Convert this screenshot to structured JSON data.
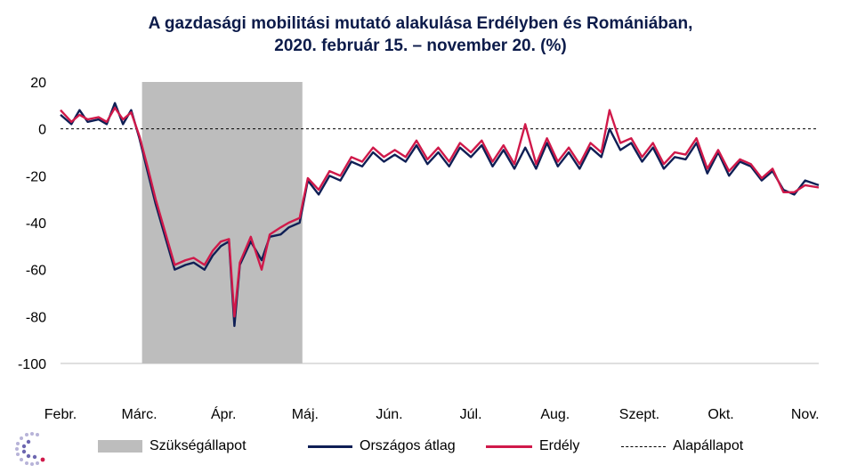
{
  "title": {
    "line1": "A gazdasági mobilitási mutató alakulása Erdélyben és Romániában,",
    "line2": "2020. február 15. – november 20. (%)"
  },
  "colors": {
    "orszagos": "#0f1f55",
    "erdely": "#d0194a",
    "shade": "#bdbdbd",
    "baseline": "#000000"
  },
  "legend": {
    "shade_label": "Szükségállapot",
    "orszagos_label": "Országos átlag",
    "erdely_label": "Erdély",
    "baseline_label": "Alapállapot"
  },
  "chart_data": {
    "type": "line",
    "title": "A gazdasági mobilitási mutató alakulása Erdélyben és Romániában, 2020. február 15. – november 20. (%)",
    "x_range": [
      "2020-02-15",
      "2020-11-20"
    ],
    "ylim": [
      -100,
      20
    ],
    "yticks": [
      20,
      0,
      -20,
      -40,
      -60,
      -80,
      -100
    ],
    "xticks": [
      {
        "label": "Febr.",
        "date": "2020-02-15"
      },
      {
        "label": "Márc.",
        "date": "2020-03-15"
      },
      {
        "label": "Ápr.",
        "date": "2020-04-15"
      },
      {
        "label": "Máj.",
        "date": "2020-05-15"
      },
      {
        "label": "Jún.",
        "date": "2020-06-15"
      },
      {
        "label": "Júl.",
        "date": "2020-07-15"
      },
      {
        "label": "Aug.",
        "date": "2020-08-15"
      },
      {
        "label": "Szept.",
        "date": "2020-09-15"
      },
      {
        "label": "Okt.",
        "date": "2020-10-15"
      },
      {
        "label": "Nov.",
        "date": "2020-11-15"
      }
    ],
    "shaded_period": {
      "name": "Szükségállapot",
      "start": "2020-03-16",
      "end": "2020-05-14"
    },
    "baseline": {
      "name": "Alapállapot",
      "value": 0
    },
    "grid": false,
    "legend_position": "bottom",
    "series": [
      {
        "name": "Országos átlag",
        "x": [
          "2020-02-15",
          "2020-02-19",
          "2020-02-22",
          "2020-02-25",
          "2020-02-29",
          "2020-03-03",
          "2020-03-06",
          "2020-03-09",
          "2020-03-12",
          "2020-03-15",
          "2020-03-18",
          "2020-03-21",
          "2020-03-25",
          "2020-03-28",
          "2020-04-01",
          "2020-04-04",
          "2020-04-08",
          "2020-04-11",
          "2020-04-14",
          "2020-04-17",
          "2020-04-19",
          "2020-04-21",
          "2020-04-25",
          "2020-04-29",
          "2020-05-02",
          "2020-05-06",
          "2020-05-09",
          "2020-05-13",
          "2020-05-16",
          "2020-05-20",
          "2020-05-24",
          "2020-05-28",
          "2020-06-01",
          "2020-06-05",
          "2020-06-09",
          "2020-06-13",
          "2020-06-17",
          "2020-06-21",
          "2020-06-25",
          "2020-06-29",
          "2020-07-03",
          "2020-07-07",
          "2020-07-11",
          "2020-07-15",
          "2020-07-19",
          "2020-07-23",
          "2020-07-27",
          "2020-07-31",
          "2020-08-04",
          "2020-08-08",
          "2020-08-12",
          "2020-08-16",
          "2020-08-20",
          "2020-08-24",
          "2020-08-28",
          "2020-09-01",
          "2020-09-04",
          "2020-09-08",
          "2020-09-12",
          "2020-09-16",
          "2020-09-20",
          "2020-09-24",
          "2020-09-28",
          "2020-10-02",
          "2020-10-06",
          "2020-10-10",
          "2020-10-14",
          "2020-10-18",
          "2020-10-22",
          "2020-10-26",
          "2020-10-30",
          "2020-11-03",
          "2020-11-07",
          "2020-11-11",
          "2020-11-15",
          "2020-11-20"
        ],
        "values": [
          6,
          2,
          8,
          3,
          4,
          2,
          11,
          2,
          8,
          -4,
          -18,
          -32,
          -48,
          -60,
          -58,
          -57,
          -60,
          -54,
          -50,
          -48,
          -84,
          -58,
          -48,
          -56,
          -46,
          -45,
          -42,
          -40,
          -22,
          -28,
          -20,
          -22,
          -14,
          -16,
          -10,
          -14,
          -11,
          -14,
          -7,
          -15,
          -10,
          -16,
          -8,
          -12,
          -7,
          -16,
          -9,
          -17,
          -8,
          -17,
          -6,
          -16,
          -10,
          -17,
          -8,
          -12,
          0,
          -9,
          -6,
          -14,
          -8,
          -17,
          -12,
          -13,
          -6,
          -19,
          -10,
          -20,
          -14,
          -16,
          -22,
          -18,
          -26,
          -28,
          -22,
          -24
        ]
      },
      {
        "name": "Erdély",
        "x": [
          "2020-02-15",
          "2020-02-19",
          "2020-02-22",
          "2020-02-25",
          "2020-02-29",
          "2020-03-03",
          "2020-03-06",
          "2020-03-09",
          "2020-03-12",
          "2020-03-15",
          "2020-03-18",
          "2020-03-21",
          "2020-03-25",
          "2020-03-28",
          "2020-04-01",
          "2020-04-04",
          "2020-04-08",
          "2020-04-11",
          "2020-04-14",
          "2020-04-17",
          "2020-04-19",
          "2020-04-21",
          "2020-04-25",
          "2020-04-29",
          "2020-05-02",
          "2020-05-06",
          "2020-05-09",
          "2020-05-13",
          "2020-05-16",
          "2020-05-20",
          "2020-05-24",
          "2020-05-28",
          "2020-06-01",
          "2020-06-05",
          "2020-06-09",
          "2020-06-13",
          "2020-06-17",
          "2020-06-21",
          "2020-06-25",
          "2020-06-29",
          "2020-07-03",
          "2020-07-07",
          "2020-07-11",
          "2020-07-15",
          "2020-07-19",
          "2020-07-23",
          "2020-07-27",
          "2020-07-31",
          "2020-08-04",
          "2020-08-08",
          "2020-08-12",
          "2020-08-16",
          "2020-08-20",
          "2020-08-24",
          "2020-08-28",
          "2020-09-01",
          "2020-09-04",
          "2020-09-08",
          "2020-09-12",
          "2020-09-16",
          "2020-09-20",
          "2020-09-24",
          "2020-09-28",
          "2020-10-02",
          "2020-10-06",
          "2020-10-10",
          "2020-10-14",
          "2020-10-18",
          "2020-10-22",
          "2020-10-26",
          "2020-10-30",
          "2020-11-03",
          "2020-11-07",
          "2020-11-11",
          "2020-11-15",
          "2020-11-20"
        ],
        "values": [
          8,
          3,
          6,
          4,
          5,
          3,
          9,
          4,
          7,
          -3,
          -16,
          -30,
          -46,
          -58,
          -56,
          -55,
          -58,
          -52,
          -48,
          -47,
          -80,
          -57,
          -46,
          -60,
          -45,
          -42,
          -40,
          -38,
          -21,
          -26,
          -18,
          -20,
          -12,
          -14,
          -8,
          -12,
          -9,
          -12,
          -5,
          -13,
          -8,
          -14,
          -6,
          -10,
          -5,
          -14,
          -7,
          -15,
          2,
          -15,
          -4,
          -14,
          -8,
          -15,
          -6,
          -10,
          8,
          -6,
          -4,
          -12,
          -6,
          -15,
          -10,
          -11,
          -4,
          -17,
          -9,
          -18,
          -13,
          -15,
          -21,
          -17,
          -27,
          -27,
          -24,
          -25
        ]
      }
    ]
  }
}
